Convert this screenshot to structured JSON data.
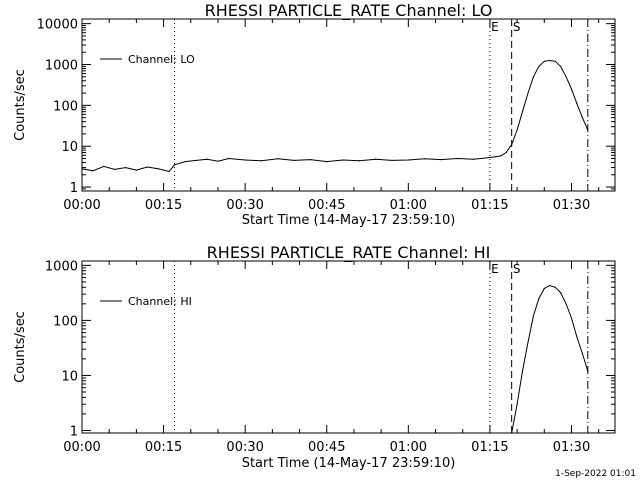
{
  "footer": "1-Sep-2022 01:01",
  "chart_data": [
    {
      "type": "line",
      "title": "RHESSI PARTICLE_RATE Channel: LO",
      "xlabel": "Start Time (14-May-17 23:59:10)",
      "ylabel": "Counts/sec",
      "scale_y": "log",
      "xlim": [
        "00:00",
        "01:38"
      ],
      "ylim": [
        0.8,
        13000
      ],
      "x_ticks": [
        "00:00",
        "00:15",
        "00:30",
        "00:45",
        "01:00",
        "01:15",
        "01:30"
      ],
      "y_ticks": [
        "1",
        "10",
        "100",
        "1000",
        "10000"
      ],
      "legend": "Channel: LO",
      "legend_position": "top-left",
      "grid": false,
      "markers": [
        {
          "label": "E",
          "x": "01:15",
          "style": "dotted"
        },
        {
          "label": "S",
          "x": "01:19",
          "style": "dashed"
        },
        {
          "label": "",
          "x": "00:17",
          "style": "dotted"
        },
        {
          "label": "",
          "x": "01:33",
          "style": "dash-dot"
        }
      ],
      "series": [
        {
          "name": "Channel: LO",
          "x": [
            "00:00",
            "00:02",
            "00:04",
            "00:06",
            "00:08",
            "00:10",
            "00:12",
            "00:14",
            "00:16",
            "00:17",
            "00:19",
            "00:21",
            "00:23",
            "00:25",
            "00:27",
            "00:30",
            "00:33",
            "00:36",
            "00:39",
            "00:42",
            "00:45",
            "00:48",
            "00:51",
            "00:54",
            "00:57",
            "01:00",
            "01:03",
            "01:06",
            "01:09",
            "01:12",
            "01:15",
            "01:16",
            "01:17",
            "01:18",
            "01:19",
            "01:20",
            "01:21",
            "01:22",
            "01:23",
            "01:24",
            "01:25",
            "01:26",
            "01:27",
            "01:28",
            "01:29",
            "01:30",
            "01:31",
            "01:32",
            "01:33"
          ],
          "y": [
            2.8,
            2.5,
            3.2,
            2.7,
            3.0,
            2.6,
            3.1,
            2.8,
            2.4,
            3.5,
            4.2,
            4.5,
            4.8,
            4.3,
            5.0,
            4.6,
            4.4,
            4.9,
            4.5,
            4.7,
            4.2,
            4.6,
            4.4,
            4.8,
            4.5,
            4.6,
            4.9,
            4.7,
            5.0,
            4.8,
            5.3,
            5.5,
            5.8,
            7,
            11,
            25,
            70,
            200,
            500,
            900,
            1200,
            1250,
            1200,
            900,
            500,
            250,
            110,
            50,
            25
          ]
        }
      ]
    },
    {
      "type": "line",
      "title": "RHESSI PARTICLE_RATE Channel: HI",
      "xlabel": "Start Time (14-May-17 23:59:10)",
      "ylabel": "Counts/sec",
      "scale_y": "log",
      "xlim": [
        "00:00",
        "01:38"
      ],
      "ylim": [
        0.9,
        1200
      ],
      "x_ticks": [
        "00:00",
        "00:15",
        "00:30",
        "00:45",
        "01:00",
        "01:15",
        "01:30"
      ],
      "y_ticks": [
        "1",
        "10",
        "100",
        "1000"
      ],
      "legend": "Channel: HI",
      "legend_position": "top-left",
      "grid": false,
      "markers": [
        {
          "label": "E",
          "x": "01:15",
          "style": "dotted"
        },
        {
          "label": "S",
          "x": "01:19",
          "style": "dashed"
        },
        {
          "label": "",
          "x": "00:17",
          "style": "dotted"
        },
        {
          "label": "",
          "x": "01:33",
          "style": "dash-dot"
        }
      ],
      "series": [
        {
          "name": "Channel: HI",
          "x": [
            "01:19",
            "01:20",
            "01:21",
            "01:22",
            "01:23",
            "01:24",
            "01:25",
            "01:26",
            "01:27",
            "01:28",
            "01:29",
            "01:30",
            "01:31",
            "01:32",
            "01:33"
          ],
          "y": [
            0.9,
            3,
            12,
            40,
            120,
            250,
            380,
            430,
            400,
            320,
            200,
            110,
            50,
            25,
            12
          ]
        }
      ]
    }
  ]
}
